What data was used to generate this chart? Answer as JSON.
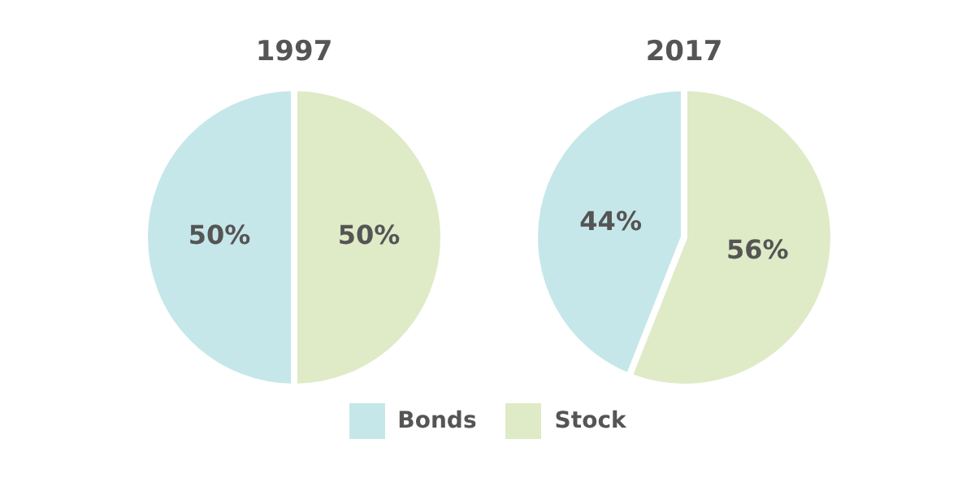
{
  "chart_data": [
    {
      "type": "pie",
      "title": "1997",
      "categories": [
        "Bonds",
        "Stock"
      ],
      "values": [
        50,
        50
      ],
      "colors": [
        "#c6e7e9",
        "#dfeac7"
      ],
      "value_labels": [
        "50%",
        "50%"
      ],
      "legend": "bottom"
    },
    {
      "type": "pie",
      "title": "2017",
      "categories": [
        null,
        null
      ],
      "values": [
        44,
        56
      ],
      "colors": [
        "#c6e7e9",
        "#dfeac7"
      ],
      "value_labels": [
        "44%",
        "56%"
      ]
    }
  ]
}
